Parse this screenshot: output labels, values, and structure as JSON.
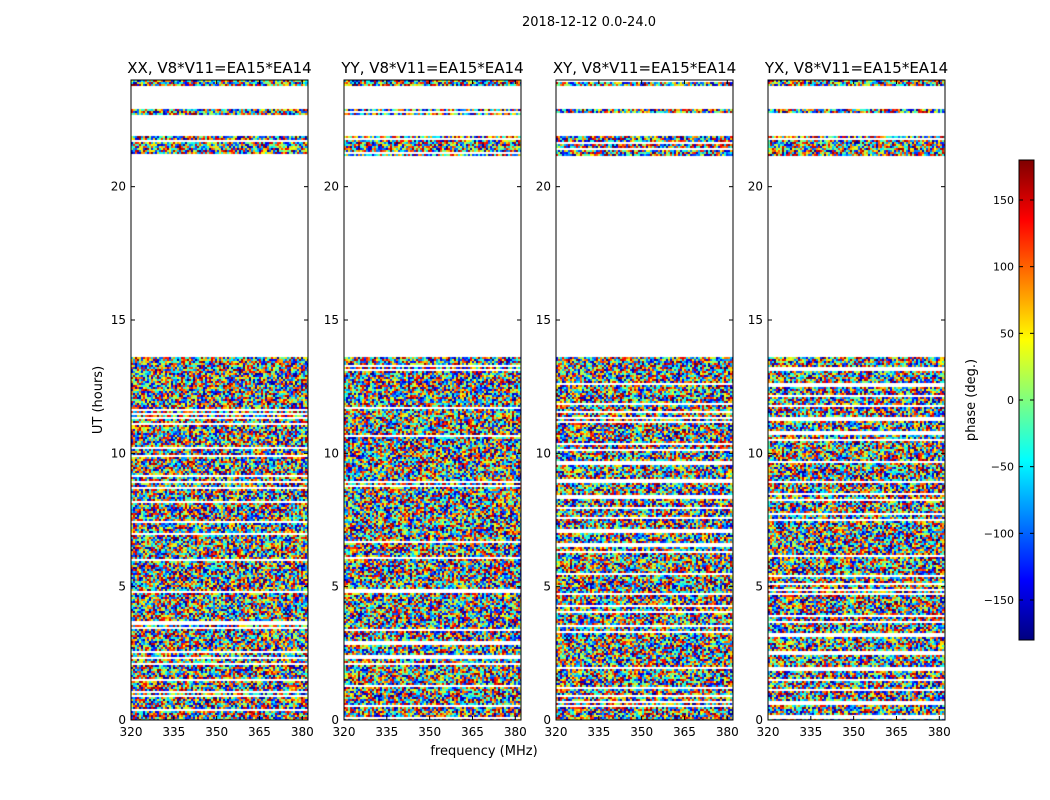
{
  "chart_data": {
    "type": "heatmap",
    "suptitle": "2018-12-12 0.0-24.0",
    "xlabel": "frequency (MHz)",
    "ylabel": "UT (hours)",
    "xlim": [
      320,
      382
    ],
    "ylim": [
      0,
      24
    ],
    "xticks": [
      320,
      335,
      350,
      365,
      380
    ],
    "yticks": [
      0,
      5,
      10,
      15,
      20
    ],
    "colorbar": {
      "label": "phase (deg.)",
      "range": [
        -180,
        180
      ],
      "ticks": [
        150,
        100,
        50,
        0,
        -50,
        -100,
        -150
      ],
      "tick_labels": [
        "150",
        "100",
        "50",
        "0",
        "−50",
        "−100",
        "−150"
      ],
      "colormap": "jet",
      "colors": [
        "#00007f",
        "#0000ff",
        "#007fff",
        "#00ffff",
        "#7fff7f",
        "#ffff00",
        "#ff7f00",
        "#ff0000",
        "#7f0000"
      ]
    },
    "panels": [
      {
        "title": "XX, V8*V11=EA15*EA14"
      },
      {
        "title": "YY, V8*V11=EA15*EA14"
      },
      {
        "title": "XY, V8*V11=EA15*EA14"
      },
      {
        "title": "YX, V8*V11=EA15*EA14"
      }
    ],
    "data_time_ranges_hours": [
      [
        0,
        13.6
      ],
      [
        21.2,
        21.9
      ],
      [
        22.7,
        22.9
      ],
      [
        23.8,
        24
      ]
    ]
  }
}
